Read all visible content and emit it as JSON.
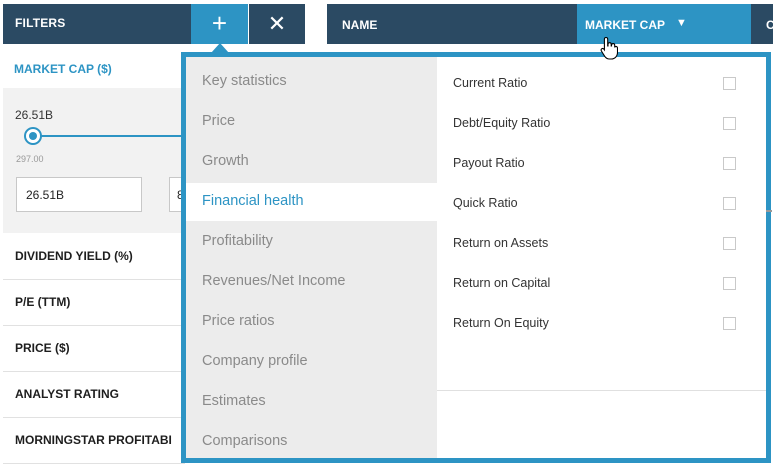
{
  "filters_panel": {
    "title": "FILTERS",
    "add_icon": "plus-icon",
    "close_icon": "close-icon",
    "market_cap": {
      "title": "MARKET CAP ($)",
      "current_value": "26.51B",
      "min_label": "297.00",
      "min_input": "26.51B",
      "max_input": "8"
    },
    "rows": [
      {
        "label": "DIVIDEND YIELD (%)"
      },
      {
        "label": "P/E (TTM)"
      },
      {
        "label": "PRICE ($)"
      },
      {
        "label": "ANALYST RATING"
      },
      {
        "label": "MORNINGSTAR PROFITABI"
      }
    ]
  },
  "table_header": {
    "name": "NAME",
    "market_cap": "MARKET CAP",
    "sort_icon": "sort-desc-triangle-icon",
    "next_col_fragment": "C"
  },
  "dropdown": {
    "categories": [
      {
        "label": "Key statistics"
      },
      {
        "label": "Price"
      },
      {
        "label": "Growth"
      },
      {
        "label": "Financial health",
        "active": true
      },
      {
        "label": "Profitability"
      },
      {
        "label": "Revenues/Net Income"
      },
      {
        "label": "Price ratios"
      },
      {
        "label": "Company profile"
      },
      {
        "label": "Estimates"
      },
      {
        "label": "Comparisons"
      }
    ],
    "options": [
      {
        "label": "Current Ratio",
        "checked": false
      },
      {
        "label": "Debt/Equity Ratio",
        "checked": false
      },
      {
        "label": "Payout Ratio",
        "checked": false
      },
      {
        "label": "Quick Ratio",
        "checked": false
      },
      {
        "label": "Return on Assets",
        "checked": false
      },
      {
        "label": "Return on Capital",
        "checked": false
      },
      {
        "label": "Return On Equity",
        "checked": false
      }
    ]
  },
  "colors": {
    "header_dark": "#2b4a63",
    "accent_blue": "#2d94c4",
    "category_bg": "#ececec",
    "active_text": "#2d94c4"
  },
  "cursor_icon": "hand-pointer-icon"
}
